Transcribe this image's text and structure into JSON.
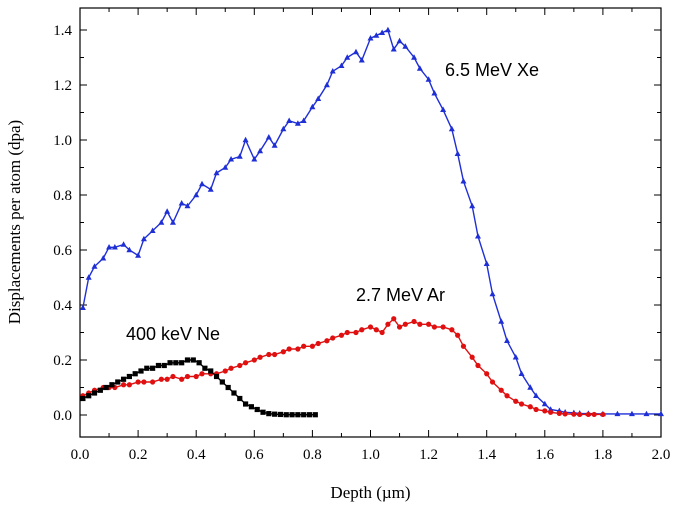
{
  "chart_data": {
    "type": "line",
    "title": "",
    "xlabel": "Depth (µm)",
    "ylabel": "Displacements per atom (dpa)",
    "xlim": [
      0.0,
      2.0
    ],
    "ylim": [
      -0.08,
      1.48
    ],
    "xticks": [
      0.0,
      0.2,
      0.4,
      0.6,
      0.8,
      1.0,
      1.2,
      1.4,
      1.6,
      1.8,
      2.0
    ],
    "xtick_labels": [
      "0.0",
      "0.2",
      "0.4",
      "0.6",
      "0.8",
      "1.0",
      "1.2",
      "1.4",
      "1.6",
      "1.8",
      "2.0"
    ],
    "yticks": [
      0.0,
      0.2,
      0.4,
      0.6,
      0.8,
      1.0,
      1.2,
      1.4
    ],
    "ytick_labels": [
      "0.0",
      "0.2",
      "0.4",
      "0.6",
      "0.8",
      "1.0",
      "1.2",
      "1.4"
    ],
    "grid": false,
    "legend": "none",
    "series": [
      {
        "name": "6.5 MeV Xe",
        "color": "#1f2fd6",
        "marker": "triangle",
        "x": [
          0.01,
          0.03,
          0.05,
          0.08,
          0.1,
          0.12,
          0.15,
          0.17,
          0.2,
          0.22,
          0.25,
          0.28,
          0.3,
          0.32,
          0.35,
          0.37,
          0.4,
          0.42,
          0.45,
          0.47,
          0.5,
          0.52,
          0.55,
          0.57,
          0.6,
          0.62,
          0.65,
          0.67,
          0.7,
          0.72,
          0.75,
          0.77,
          0.8,
          0.82,
          0.85,
          0.87,
          0.9,
          0.92,
          0.95,
          0.97,
          1.0,
          1.02,
          1.04,
          1.06,
          1.08,
          1.1,
          1.12,
          1.15,
          1.17,
          1.2,
          1.22,
          1.25,
          1.28,
          1.3,
          1.32,
          1.35,
          1.37,
          1.4,
          1.42,
          1.45,
          1.47,
          1.5,
          1.52,
          1.55,
          1.57,
          1.6,
          1.62,
          1.65,
          1.67,
          1.7,
          1.72,
          1.75,
          1.8,
          1.85,
          1.9,
          1.95,
          2.0
        ],
        "y": [
          0.39,
          0.5,
          0.54,
          0.57,
          0.61,
          0.61,
          0.62,
          0.6,
          0.58,
          0.64,
          0.67,
          0.7,
          0.74,
          0.7,
          0.77,
          0.76,
          0.8,
          0.84,
          0.82,
          0.88,
          0.9,
          0.93,
          0.94,
          1.0,
          0.93,
          0.96,
          1.01,
          0.98,
          1.04,
          1.07,
          1.06,
          1.07,
          1.12,
          1.15,
          1.2,
          1.25,
          1.27,
          1.3,
          1.32,
          1.29,
          1.37,
          1.38,
          1.39,
          1.4,
          1.33,
          1.36,
          1.34,
          1.3,
          1.26,
          1.22,
          1.17,
          1.11,
          1.04,
          0.95,
          0.85,
          0.76,
          0.65,
          0.55,
          0.44,
          0.34,
          0.27,
          0.21,
          0.15,
          0.1,
          0.07,
          0.04,
          0.02,
          0.015,
          0.01,
          0.008,
          0.006,
          0.005,
          0.004,
          0.004,
          0.004,
          0.004,
          0.004
        ]
      },
      {
        "name": "2.7 MeV Ar",
        "color": "#e01010",
        "marker": "circle",
        "x": [
          0.01,
          0.03,
          0.05,
          0.08,
          0.1,
          0.12,
          0.15,
          0.17,
          0.2,
          0.22,
          0.25,
          0.28,
          0.3,
          0.32,
          0.35,
          0.37,
          0.4,
          0.42,
          0.45,
          0.47,
          0.5,
          0.52,
          0.55,
          0.57,
          0.6,
          0.62,
          0.65,
          0.67,
          0.7,
          0.72,
          0.75,
          0.77,
          0.8,
          0.82,
          0.85,
          0.87,
          0.9,
          0.92,
          0.95,
          0.97,
          1.0,
          1.02,
          1.04,
          1.06,
          1.08,
          1.1,
          1.12,
          1.15,
          1.17,
          1.2,
          1.22,
          1.25,
          1.28,
          1.3,
          1.32,
          1.35,
          1.37,
          1.4,
          1.42,
          1.45,
          1.47,
          1.5,
          1.52,
          1.55,
          1.57,
          1.6,
          1.62,
          1.65,
          1.67,
          1.7,
          1.72,
          1.75,
          1.77,
          1.8
        ],
        "y": [
          0.07,
          0.08,
          0.09,
          0.1,
          0.1,
          0.1,
          0.11,
          0.11,
          0.12,
          0.12,
          0.12,
          0.13,
          0.13,
          0.14,
          0.13,
          0.14,
          0.14,
          0.15,
          0.15,
          0.15,
          0.16,
          0.17,
          0.18,
          0.19,
          0.2,
          0.21,
          0.22,
          0.22,
          0.23,
          0.24,
          0.24,
          0.25,
          0.25,
          0.26,
          0.27,
          0.28,
          0.29,
          0.3,
          0.3,
          0.31,
          0.32,
          0.31,
          0.3,
          0.33,
          0.35,
          0.32,
          0.33,
          0.34,
          0.33,
          0.33,
          0.32,
          0.32,
          0.31,
          0.29,
          0.25,
          0.21,
          0.18,
          0.15,
          0.12,
          0.09,
          0.07,
          0.05,
          0.04,
          0.03,
          0.02,
          0.015,
          0.01,
          0.006,
          0.004,
          0.003,
          0.002,
          0.002,
          0.002,
          0.002
        ]
      },
      {
        "name": "400 keV Ne",
        "color": "#000000",
        "marker": "square",
        "x": [
          0.01,
          0.03,
          0.05,
          0.07,
          0.09,
          0.11,
          0.13,
          0.15,
          0.17,
          0.19,
          0.21,
          0.23,
          0.25,
          0.27,
          0.29,
          0.31,
          0.33,
          0.35,
          0.37,
          0.39,
          0.41,
          0.43,
          0.45,
          0.47,
          0.49,
          0.51,
          0.53,
          0.55,
          0.57,
          0.59,
          0.61,
          0.63,
          0.65,
          0.67,
          0.69,
          0.71,
          0.73,
          0.75,
          0.77,
          0.79,
          0.81
        ],
        "y": [
          0.06,
          0.07,
          0.08,
          0.09,
          0.1,
          0.11,
          0.12,
          0.13,
          0.14,
          0.15,
          0.16,
          0.17,
          0.17,
          0.18,
          0.18,
          0.19,
          0.19,
          0.19,
          0.2,
          0.2,
          0.19,
          0.17,
          0.16,
          0.14,
          0.12,
          0.1,
          0.08,
          0.06,
          0.04,
          0.03,
          0.02,
          0.01,
          0.005,
          0.003,
          0.002,
          0.001,
          0.001,
          0.001,
          0.001,
          0.001,
          0.001
        ]
      }
    ],
    "annotations": [
      {
        "text": "6.5 MeV Xe",
        "series": "6.5 MeV Xe"
      },
      {
        "text": "2.7 MeV Ar",
        "series": "2.7 MeV Ar"
      },
      {
        "text": "400 keV Ne",
        "series": "400 keV Ne"
      }
    ]
  }
}
